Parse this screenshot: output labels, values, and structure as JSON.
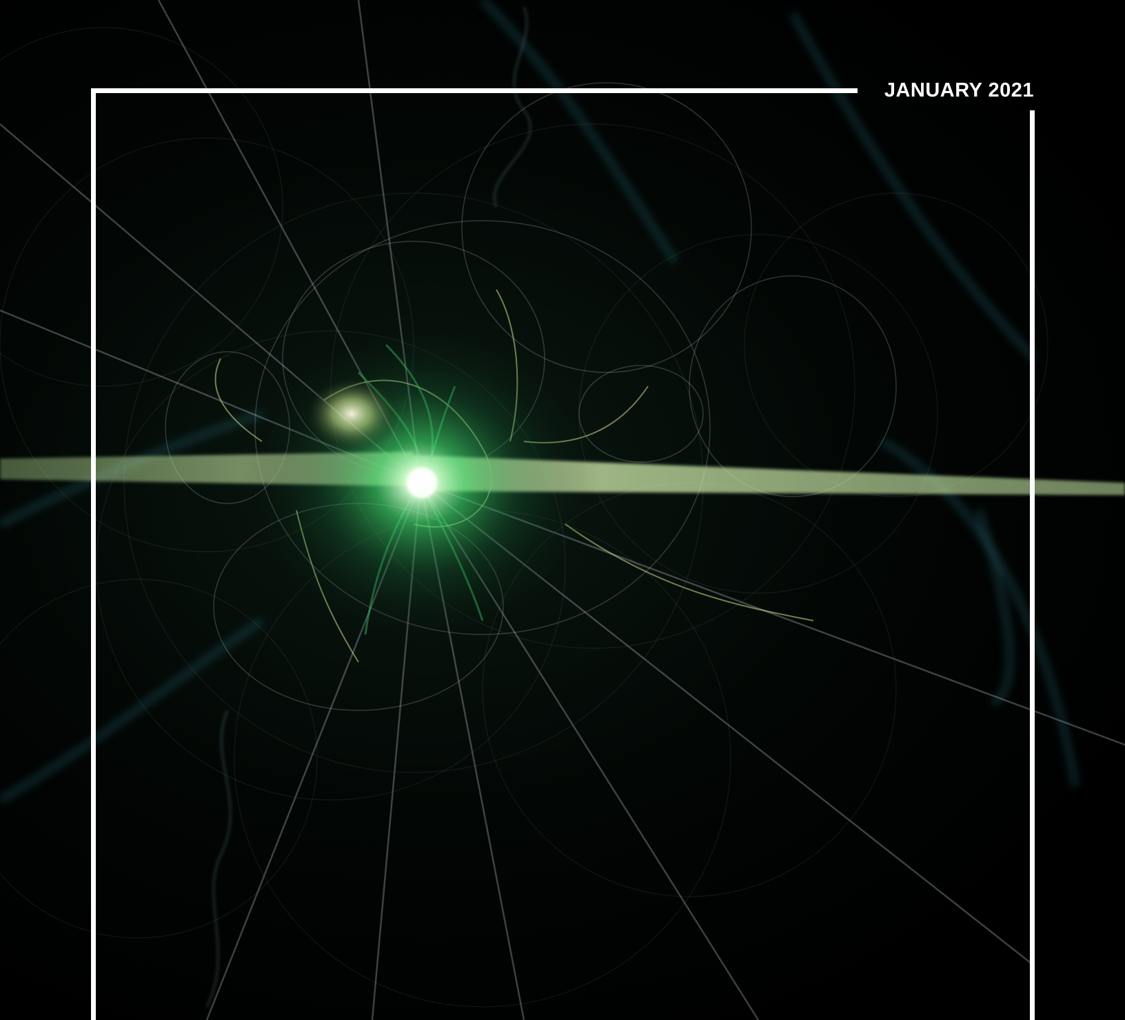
{
  "cover": {
    "issue_date": "JANUARY 2021"
  },
  "artwork": {
    "description_icon": "fractal-particle-burst-image",
    "colors": {
      "background": "#000000",
      "glow_core": "#e8ffe0",
      "glow_green": "#3ed26a",
      "glow_yellow_green": "#c8e68c",
      "teal_wisps": "#2f6f7a",
      "faint_lines": "#8a8f9a",
      "frame": "#ffffff"
    }
  }
}
